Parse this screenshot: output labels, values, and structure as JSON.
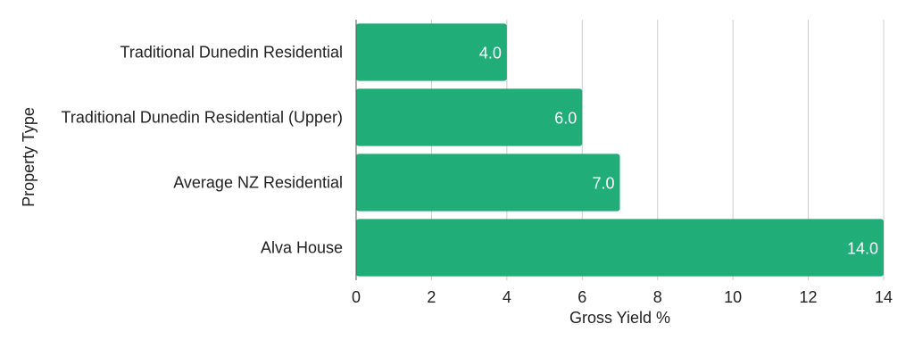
{
  "chart_data": {
    "type": "bar",
    "orientation": "horizontal",
    "title": "",
    "categories": [
      "Traditional Dunedin Residential",
      "Traditional Dunedin Residential (Upper)",
      "Average NZ Residential",
      "Alva House"
    ],
    "values": [
      4.0,
      6.0,
      7.0,
      14.0
    ],
    "data_labels": [
      "4.0",
      "6.0",
      "7.0",
      "14.0"
    ],
    "xlabel": "Gross Yield %",
    "ylabel": "Property Type",
    "xlim": [
      0,
      14
    ],
    "xticks": [
      0,
      2,
      4,
      6,
      8,
      10,
      12,
      14
    ],
    "grid": true,
    "legend": "none",
    "bar_color": "#21ad78",
    "grid_color": "#cccccc"
  }
}
